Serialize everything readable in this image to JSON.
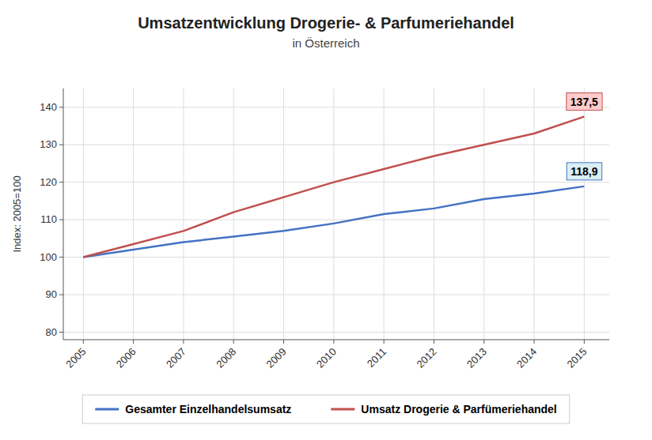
{
  "chart_data": {
    "type": "line",
    "title": "Umsatzentwicklung Drogerie- & Parfumeriehandel",
    "subtitle": "in Österreich",
    "y_label": "Index: 2005=100",
    "x": [
      2005,
      2006,
      2007,
      2008,
      2009,
      2010,
      2011,
      2012,
      2013,
      2014,
      2015
    ],
    "xlim": [
      2004.6,
      2015.5
    ],
    "xticks": [
      2005,
      2006,
      2007,
      2008,
      2009,
      2010,
      2011,
      2012,
      2013,
      2014,
      2015
    ],
    "ylim": [
      78,
      145
    ],
    "yticks": [
      80,
      90,
      100,
      110,
      120,
      130,
      140
    ],
    "grid": true,
    "legend": "bottom",
    "series": [
      {
        "name": "Gesamter Einzelhandelsumsatz",
        "color": "#4472C4",
        "values": [
          100.0,
          102.0,
          104.0,
          105.5,
          107.0,
          109.0,
          111.5,
          113.0,
          115.5,
          117.0,
          118.9
        ]
      },
      {
        "name": "Umsatz Drogerie & Parfümeriehandel",
        "color": "#C0504D",
        "values": [
          100.0,
          103.5,
          107.0,
          112.0,
          116.0,
          120.0,
          123.5,
          127.0,
          130.0,
          133.0,
          137.5
        ]
      }
    ],
    "annotations": [
      {
        "text": "137,5",
        "x": 2015,
        "y": 137.5,
        "series": 1
      },
      {
        "text": "118,9",
        "x": 2015,
        "y": 118.9,
        "series": 0
      }
    ]
  }
}
